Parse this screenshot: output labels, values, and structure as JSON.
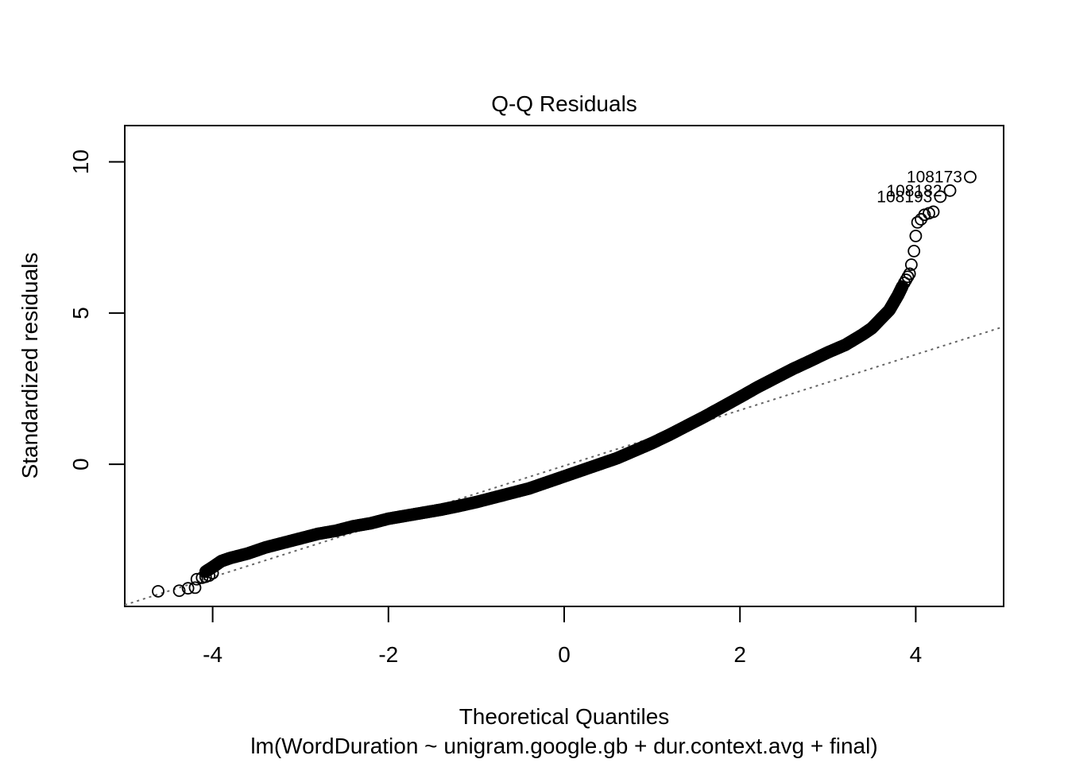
{
  "chart_data": {
    "type": "scatter",
    "title": "Q-Q Residuals",
    "xlabel": "Theoretical Quantiles",
    "subtitle": "lm(WordDuration ~ unigram.google.gb + dur.context.avg + final)",
    "ylabel": "Standardized residuals",
    "xlim": [
      -5,
      5
    ],
    "ylim": [
      -4.7,
      11.2
    ],
    "xticks": [
      -4,
      -2,
      0,
      2,
      4
    ],
    "xtick_labels": [
      "-4",
      "-2",
      "0",
      "2",
      "4"
    ],
    "yticks": [
      0,
      5,
      10
    ],
    "ytick_labels": [
      "0",
      "5",
      "10"
    ],
    "reference_line": {
      "slope": 0.92,
      "intercept": -0.05,
      "style": "dotted",
      "color": "#666666"
    },
    "curve_points": [
      [
        -4.08,
        -3.55
      ],
      [
        -4.0,
        -3.4
      ],
      [
        -3.9,
        -3.2
      ],
      [
        -3.8,
        -3.1
      ],
      [
        -3.6,
        -2.95
      ],
      [
        -3.4,
        -2.75
      ],
      [
        -3.2,
        -2.6
      ],
      [
        -3.0,
        -2.45
      ],
      [
        -2.8,
        -2.3
      ],
      [
        -2.6,
        -2.2
      ],
      [
        -2.4,
        -2.05
      ],
      [
        -2.2,
        -1.95
      ],
      [
        -2.0,
        -1.8
      ],
      [
        -1.8,
        -1.7
      ],
      [
        -1.6,
        -1.6
      ],
      [
        -1.4,
        -1.5
      ],
      [
        -1.2,
        -1.38
      ],
      [
        -1.0,
        -1.25
      ],
      [
        -0.8,
        -1.1
      ],
      [
        -0.6,
        -0.95
      ],
      [
        -0.4,
        -0.8
      ],
      [
        -0.2,
        -0.6
      ],
      [
        0.0,
        -0.4
      ],
      [
        0.2,
        -0.2
      ],
      [
        0.4,
        0.0
      ],
      [
        0.6,
        0.2
      ],
      [
        0.8,
        0.45
      ],
      [
        1.0,
        0.7
      ],
      [
        1.2,
        0.98
      ],
      [
        1.4,
        1.28
      ],
      [
        1.6,
        1.58
      ],
      [
        1.8,
        1.9
      ],
      [
        2.0,
        2.22
      ],
      [
        2.2,
        2.55
      ],
      [
        2.4,
        2.85
      ],
      [
        2.6,
        3.15
      ],
      [
        2.8,
        3.42
      ],
      [
        3.0,
        3.7
      ],
      [
        3.2,
        3.95
      ],
      [
        3.4,
        4.3
      ],
      [
        3.5,
        4.5
      ],
      [
        3.6,
        4.8
      ],
      [
        3.7,
        5.1
      ],
      [
        3.75,
        5.35
      ],
      [
        3.8,
        5.6
      ],
      [
        3.85,
        5.9
      ]
    ],
    "points": [
      [
        -4.62,
        -4.2
      ],
      [
        -4.38,
        -4.18
      ],
      [
        -4.28,
        -4.1
      ],
      [
        -4.2,
        -4.08
      ],
      [
        -4.18,
        -3.8
      ],
      [
        -4.12,
        -3.75
      ],
      [
        -4.08,
        -3.72
      ],
      [
        -4.04,
        -3.68
      ],
      [
        -4.0,
        -3.6
      ],
      [
        3.87,
        6.0
      ],
      [
        3.89,
        6.1
      ],
      [
        3.91,
        6.2
      ],
      [
        3.93,
        6.3
      ],
      [
        3.95,
        6.6
      ],
      [
        3.98,
        7.05
      ],
      [
        4.0,
        7.55
      ],
      [
        4.02,
        8.0
      ],
      [
        4.06,
        8.1
      ],
      [
        4.1,
        8.25
      ],
      [
        4.15,
        8.3
      ],
      [
        4.2,
        8.35
      ],
      [
        4.28,
        8.85
      ],
      [
        4.39,
        9.05
      ],
      [
        4.62,
        9.5
      ]
    ],
    "labeled_points": [
      {
        "label": "108173",
        "x": 4.62,
        "y": 9.5
      },
      {
        "label": "108182",
        "x": 4.39,
        "y": 9.05
      },
      {
        "label": "108193",
        "x": 4.28,
        "y": 8.85
      }
    ],
    "grid": false,
    "legend": "none"
  }
}
